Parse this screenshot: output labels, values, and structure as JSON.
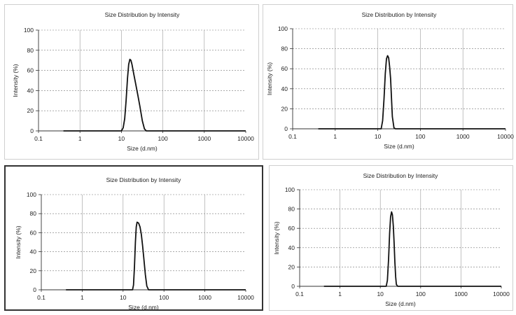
{
  "chart_data": [
    {
      "type": "line",
      "title": "Size Distribution by Intensity",
      "xlabel": "Size (d.nm)",
      "ylabel": "Intensity (%)",
      "x_scale": "log",
      "xlim": [
        0.1,
        10000
      ],
      "ylim": [
        0,
        100
      ],
      "x_ticks": [
        "0.1",
        "1",
        "10",
        "100",
        "1000",
        "10000"
      ],
      "y_ticks": [
        "0",
        "20",
        "40",
        "60",
        "80",
        "100"
      ],
      "grid": true,
      "series": [
        {
          "x": [
            0.4,
            10,
            11,
            12,
            13,
            14,
            15,
            16,
            17,
            18,
            20,
            22,
            25,
            28,
            32,
            36,
            40,
            10000
          ],
          "y": [
            0,
            0,
            3,
            12,
            30,
            52,
            66,
            71,
            70,
            66,
            56,
            47,
            35,
            24,
            10,
            2,
            0,
            0
          ]
        }
      ]
    },
    {
      "type": "line",
      "title": "Size Distribution by Intensity",
      "xlabel": "Size (d.nm)",
      "ylabel": "Intensity (%)",
      "x_scale": "log",
      "xlim": [
        0.1,
        10000
      ],
      "ylim": [
        0,
        100
      ],
      "x_ticks": [
        "0.1",
        "1",
        "10",
        "100",
        "1000",
        "10000"
      ],
      "y_ticks": [
        "0",
        "20",
        "40",
        "60",
        "80",
        "100"
      ],
      "grid": true,
      "series": [
        {
          "x": [
            0.4,
            12,
            13,
            14,
            15,
            16,
            17,
            18,
            19,
            20,
            21,
            22,
            24,
            26,
            10000
          ],
          "y": [
            0,
            0,
            8,
            30,
            55,
            70,
            73,
            71,
            62,
            50,
            30,
            12,
            1,
            0,
            0
          ]
        }
      ]
    },
    {
      "type": "line",
      "title": "Size Distribution by Intensity",
      "xlabel": "Size (d.nm)",
      "ylabel": "Intensity (%)",
      "x_scale": "log",
      "xlim": [
        0.1,
        10000
      ],
      "ylim": [
        0,
        100
      ],
      "x_ticks": [
        "0.1",
        "1",
        "10",
        "100",
        "1000",
        "10000"
      ],
      "y_ticks": [
        "0",
        "20",
        "40",
        "60",
        "80",
        "100"
      ],
      "grid": true,
      "series": [
        {
          "x": [
            0.4,
            17,
            18,
            19,
            20,
            21,
            22,
            24,
            26,
            28,
            30,
            32,
            35,
            38,
            42,
            10000
          ],
          "y": [
            0,
            0,
            5,
            25,
            50,
            66,
            71,
            70,
            66,
            58,
            46,
            34,
            16,
            4,
            0,
            0
          ]
        }
      ]
    },
    {
      "type": "line",
      "title": "Size Distribution by Intensity",
      "xlabel": "Size (d.nm)",
      "ylabel": "Intensity (%)",
      "x_scale": "log",
      "xlim": [
        0.1,
        10000
      ],
      "ylim": [
        0,
        100
      ],
      "x_ticks": [
        "0.1",
        "1",
        "10",
        "100",
        "1000",
        "10000"
      ],
      "y_ticks": [
        "0",
        "20",
        "40",
        "60",
        "80",
        "100"
      ],
      "grid": true,
      "series": [
        {
          "x": [
            0.4,
            14,
            15,
            16,
            17,
            18,
            19,
            20,
            21,
            22,
            23,
            24,
            25,
            27,
            10000
          ],
          "y": [
            0,
            0,
            6,
            28,
            55,
            72,
            77,
            74,
            62,
            45,
            25,
            10,
            2,
            0,
            0
          ]
        }
      ]
    }
  ]
}
